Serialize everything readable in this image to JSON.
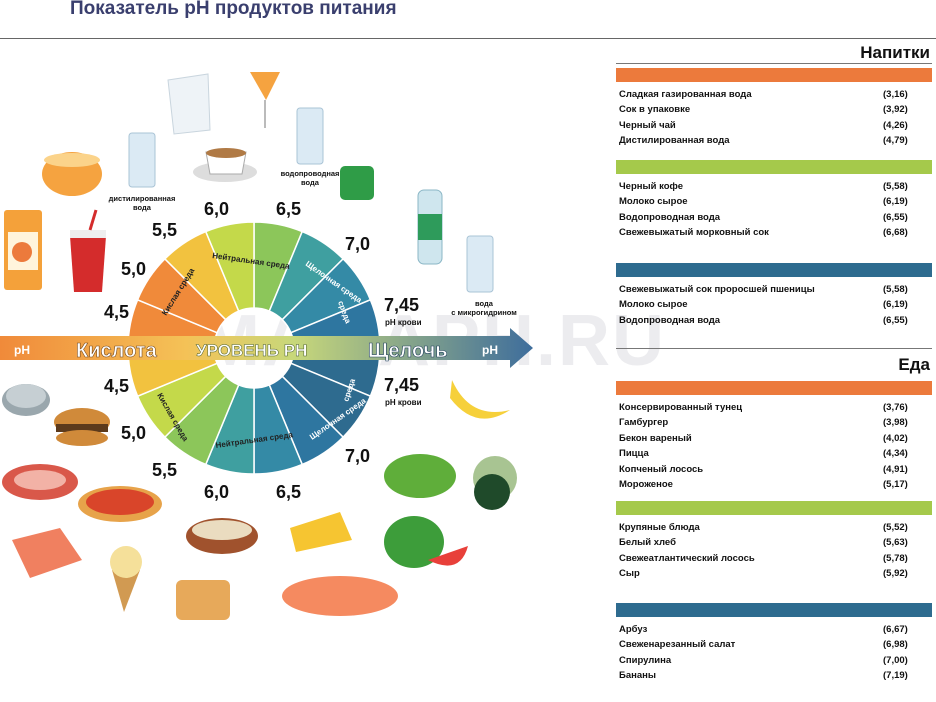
{
  "title": "Показатель pH продуктов питания",
  "watermark": "MAMAPH.RU",
  "axis": {
    "left_ph": "pH",
    "acid": "Кислота",
    "center": "УРОВЕНЬ PH",
    "alkali": "Щелочь",
    "right_ph": "pH"
  },
  "wheel_labels": {
    "neutral_top": "Нейтральная среда",
    "neutral_bottom": "Нейтральная среда",
    "acid_top": "Кислая среда",
    "acid_bottom": "Кислая среда",
    "alk_top": "Щелочная среда",
    "alk_mid_top": "среда",
    "alk_bottom": "Щелочная среда",
    "alk_mid_bottom": "среда"
  },
  "ph_top": [
    "4,5",
    "5,0",
    "5,5",
    "6,0",
    "6,5",
    "7,0",
    "7,45"
  ],
  "ph_bottom": [
    "4,5",
    "5,0",
    "5,5",
    "6,0",
    "6,5",
    "7,0",
    "7,45"
  ],
  "ph_blood_top": "pH крови",
  "ph_blood_bottom": "pH крови",
  "small_labels": {
    "distilled": "дистилированная вода",
    "tap": "водопроводная вода",
    "micro": "вода с микрогидрином"
  },
  "colors": {
    "orange": "#ec7a3c",
    "green": "#a5c94b",
    "blue": "#2e6b8f",
    "axis_left": "#f08a3a",
    "axis_right": "#3e6d9c"
  },
  "drinks": {
    "heading": "Напитки",
    "groups": [
      {
        "color": "orange",
        "items": [
          {
            "name": "Сладкая газированная вода",
            "value": "(3,16)"
          },
          {
            "name": "Сок в упаковке",
            "value": "(3,92)"
          },
          {
            "name": "Черный чай",
            "value": "(4,26)"
          },
          {
            "name": "Дистилированная вода",
            "value": "(4,79)"
          }
        ]
      },
      {
        "color": "green",
        "items": [
          {
            "name": "Черный кофе",
            "value": "(5,58)"
          },
          {
            "name": "Молоко сырое",
            "value": "(6,19)"
          },
          {
            "name": "Водопроводная вода",
            "value": "(6,55)"
          },
          {
            "name": "Свежевыжатый морковный сок",
            "value": "(6,68)"
          }
        ]
      },
      {
        "color": "blue",
        "items": [
          {
            "name": "Свежевыжатый сок проросшей пшеницы",
            "value": "(5,58)"
          },
          {
            "name": "Молоко сырое",
            "value": "(6,19)"
          },
          {
            "name": "Водопроводная вода",
            "value": "(6,55)"
          }
        ]
      }
    ]
  },
  "food": {
    "heading": "Еда",
    "groups": [
      {
        "color": "orange",
        "items": [
          {
            "name": "Консервированный тунец",
            "value": "(3,76)"
          },
          {
            "name": "Гамбургер",
            "value": "(3,98)"
          },
          {
            "name": "Бекон вареный",
            "value": "(4,02)"
          },
          {
            "name": "Пицца",
            "value": "(4,34)"
          },
          {
            "name": "Копченый лосось",
            "value": "(4,91)"
          },
          {
            "name": "Мороженое",
            "value": "(5,17)"
          }
        ]
      },
      {
        "color": "green",
        "items": [
          {
            "name": "Крупяные блюда",
            "value": "(5,52)"
          },
          {
            "name": "Белый хлеб",
            "value": "(5,63)"
          },
          {
            "name": "Свежеатлантический лосось",
            "value": "(5,78)"
          },
          {
            "name": "Сыр",
            "value": "(5,92)"
          }
        ]
      },
      {
        "color": "blue",
        "items": [
          {
            "name": "Арбуз",
            "value": "(6,67)"
          },
          {
            "name": "Свеженарезанный салат",
            "value": "(6,98)"
          },
          {
            "name": "Спирулина",
            "value": "(7,00)"
          },
          {
            "name": "Бананы",
            "value": "(7,19)"
          }
        ]
      }
    ]
  }
}
